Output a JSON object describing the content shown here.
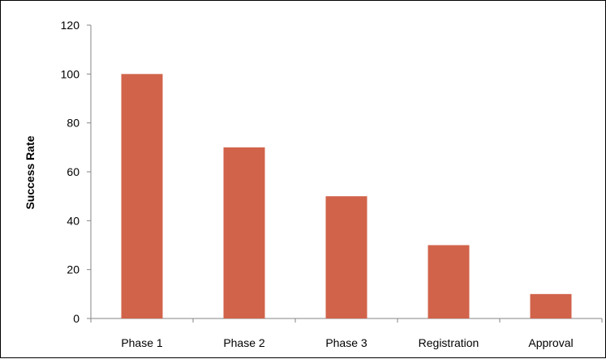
{
  "chart_data": {
    "type": "bar",
    "title": "",
    "xlabel": "",
    "ylabel": "Success Rate",
    "categories": [
      "Phase 1",
      "Phase 2",
      "Phase 3",
      "Registration",
      "Approval"
    ],
    "values": [
      100,
      70,
      50,
      30,
      10
    ],
    "ylim": [
      0,
      120
    ],
    "yticks": [
      0,
      20,
      40,
      60,
      80,
      100,
      120
    ],
    "grid": false,
    "legend": "none",
    "bar_color": "#D1634A"
  }
}
